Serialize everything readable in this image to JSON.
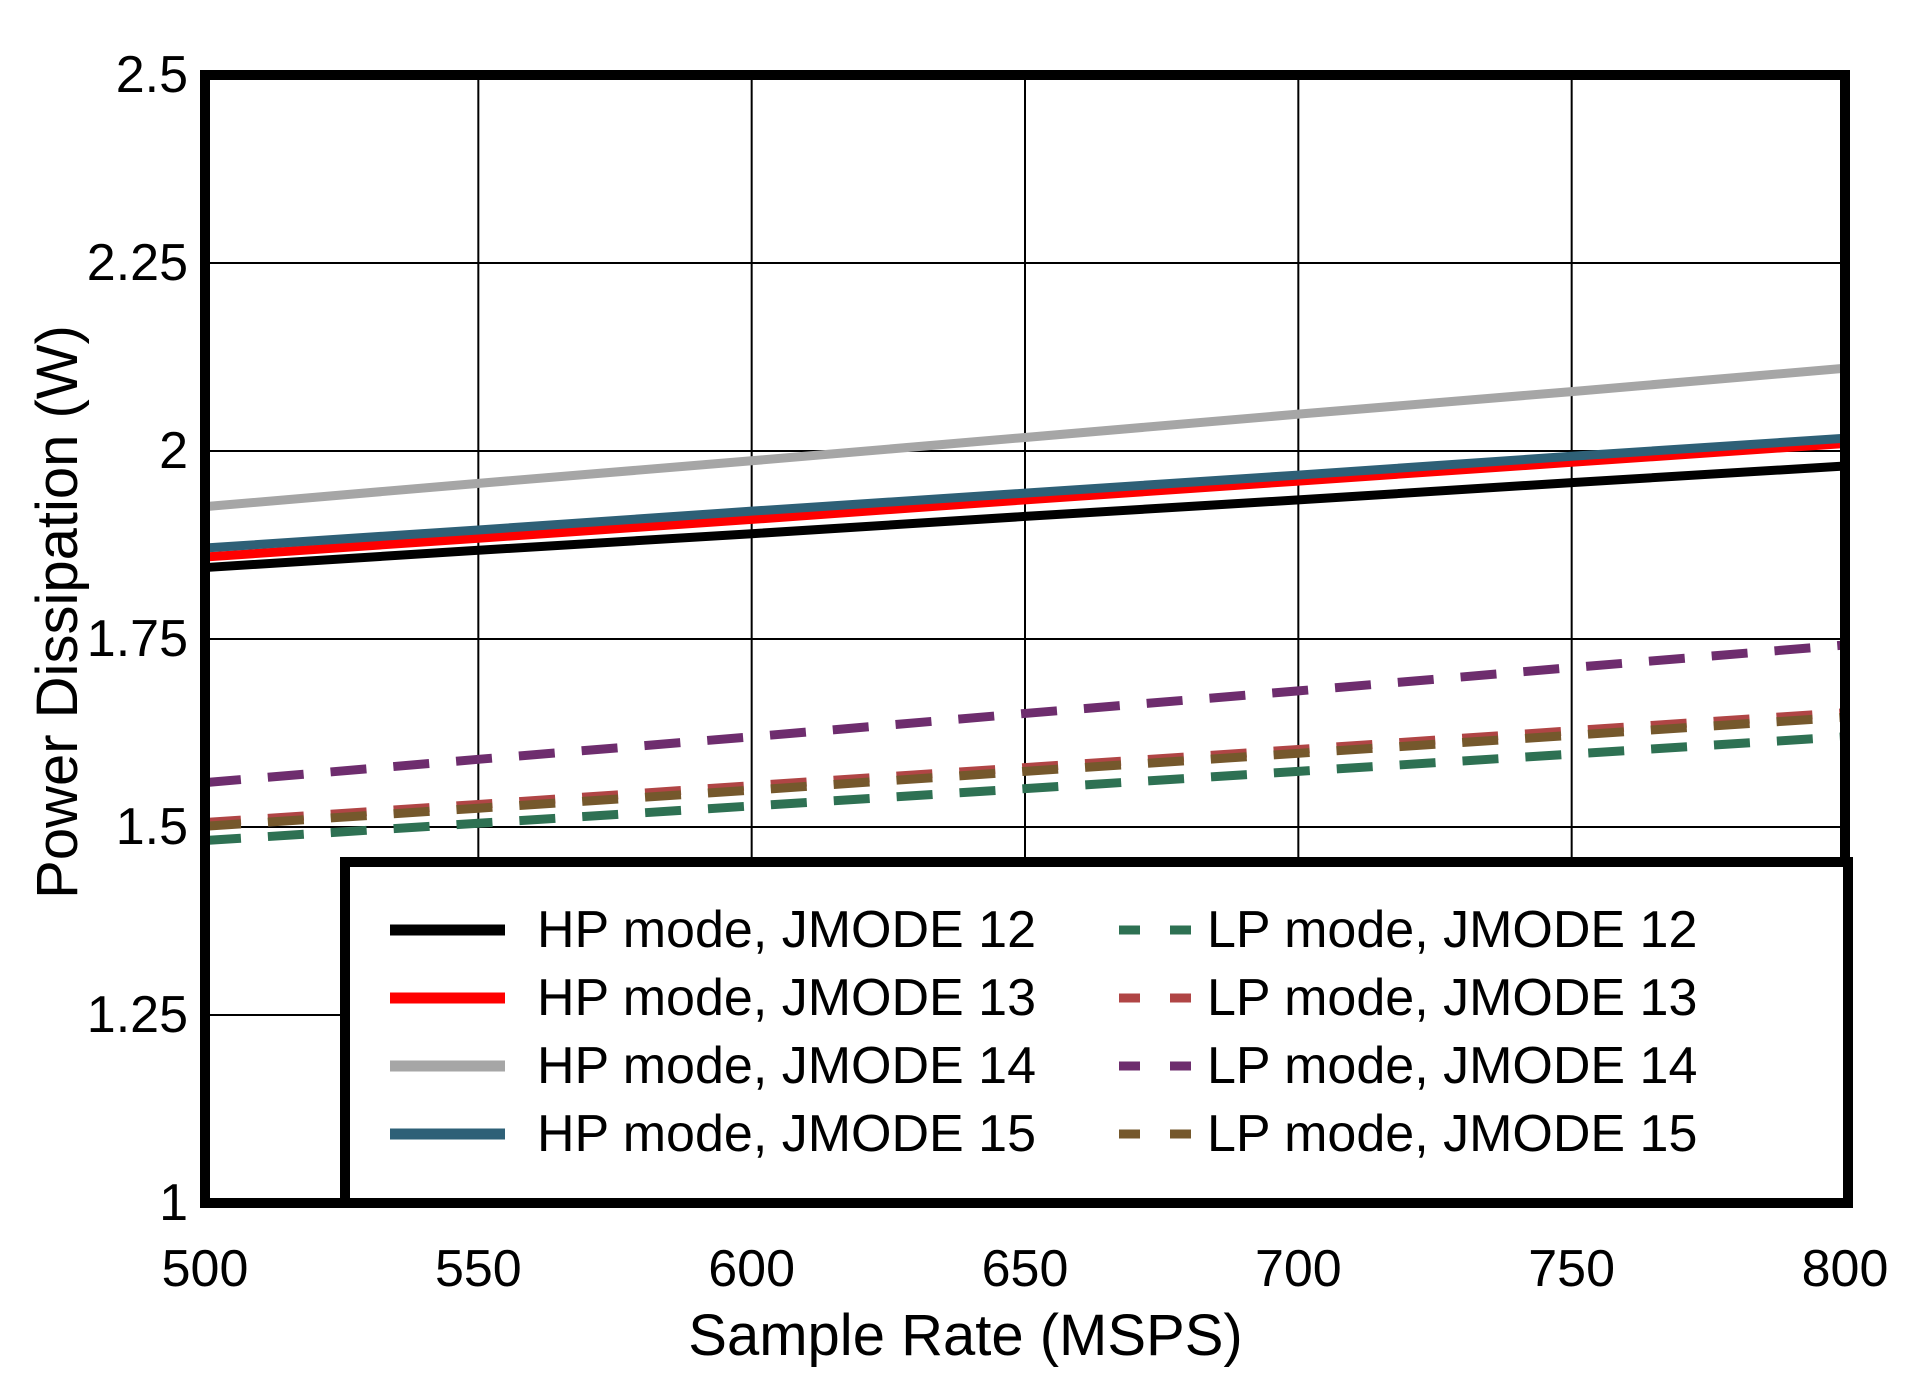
{
  "figure": {
    "background": "#ffffff",
    "border_color": "#000000",
    "gridline_color": "#000000"
  },
  "chart_data": {
    "type": "line",
    "title": "",
    "xlabel": "Sample Rate (MSPS)",
    "ylabel": "Power Dissipation (W)",
    "xlim": [
      500,
      800
    ],
    "ylim": [
      1,
      2.5
    ],
    "grid": true,
    "legend_position": "bottom-inside",
    "x": [
      500,
      550,
      600,
      650,
      700,
      750,
      800
    ],
    "xtick_labels": [
      "500",
      "550",
      "600",
      "650",
      "700",
      "750",
      "800"
    ],
    "ytick_values": [
      1,
      1.25,
      1.5,
      1.75,
      2,
      2.25,
      2.5
    ],
    "ytick_labels": [
      "1",
      "1.25",
      "1.5",
      "1.75",
      "2",
      "2.25",
      "2.5"
    ],
    "series": [
      {
        "name": "HP mode, JMODE 12",
        "mode": "HP",
        "jmode": 12,
        "style": "solid",
        "color": "#000000",
        "values": [
          1.845,
          1.868,
          1.89,
          1.913,
          1.935,
          1.958,
          1.98
        ]
      },
      {
        "name": "HP mode, JMODE 13",
        "mode": "HP",
        "jmode": 13,
        "style": "solid",
        "color": "#FF0000",
        "values": [
          1.859,
          1.884,
          1.909,
          1.935,
          1.96,
          1.985,
          2.01
        ]
      },
      {
        "name": "HP mode, JMODE 14",
        "mode": "HP",
        "jmode": 14,
        "style": "solid",
        "color": "#A6A6A6",
        "values": [
          1.926,
          1.957,
          1.987,
          2.018,
          2.049,
          2.079,
          2.11
        ]
      },
      {
        "name": "HP mode, JMODE 15",
        "mode": "HP",
        "jmode": 15,
        "style": "solid",
        "color": "#2E6077",
        "values": [
          1.871,
          1.895,
          1.92,
          1.944,
          1.968,
          1.993,
          2.017
        ]
      },
      {
        "name": "LP mode, JMODE 12",
        "mode": "LP",
        "jmode": 12,
        "style": "dashed",
        "color": "#2E7153",
        "values": [
          1.482,
          1.505,
          1.528,
          1.551,
          1.574,
          1.597,
          1.62
        ]
      },
      {
        "name": "LP mode, JMODE 13",
        "mode": "LP",
        "jmode": 13,
        "style": "dashed",
        "color": "#B04545",
        "values": [
          1.506,
          1.53,
          1.555,
          1.579,
          1.603,
          1.628,
          1.652
        ]
      },
      {
        "name": "LP mode, JMODE 14",
        "mode": "LP",
        "jmode": 14,
        "style": "dashed",
        "color": "#6E2D6E",
        "values": [
          1.559,
          1.59,
          1.62,
          1.651,
          1.681,
          1.712,
          1.742
        ]
      },
      {
        "name": "LP mode, JMODE 15",
        "mode": "LP",
        "jmode": 15,
        "style": "dashed",
        "color": "#75582C",
        "values": [
          1.501,
          1.525,
          1.549,
          1.574,
          1.598,
          1.622,
          1.646
        ]
      }
    ]
  }
}
